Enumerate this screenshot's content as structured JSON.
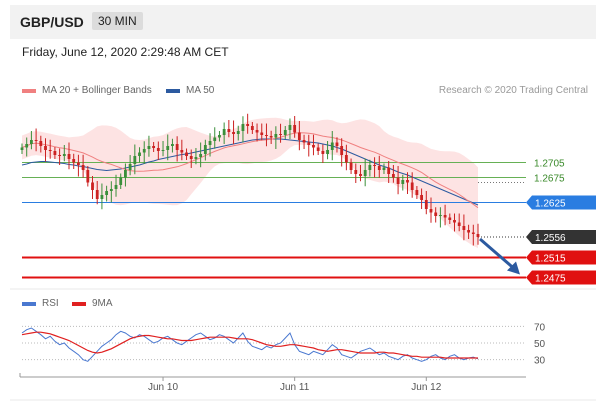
{
  "header": {
    "pair": "GBP/USD",
    "timeframe": "30 MIN"
  },
  "timestamp": "Friday, June 12, 2020 2:29:48 AM CET",
  "legend_main": [
    {
      "label": "MA 20 + Bollinger Bands",
      "color": "#f08080"
    },
    {
      "label": "MA 50",
      "color": "#2c5aa0"
    }
  ],
  "credit": "Research © 2020 Trading Central",
  "legend_rsi": [
    {
      "label": "RSI",
      "color": "#4a78d0"
    },
    {
      "label": "9MA",
      "color": "#e02020"
    }
  ],
  "colors": {
    "up": "#3a8f3a",
    "down": "#cc2222",
    "band": "#fde0e0",
    "ma50": "#2c5aa0",
    "ma20": "#f08080"
  },
  "chart_data": [
    {
      "type": "candlestick",
      "series_name": "GBP/USD 30 MIN",
      "ylim": [
        1.246,
        1.283
      ],
      "x_labels": [
        {
          "label": "Jun 10",
          "index": 30
        },
        {
          "label": "Jun 11",
          "index": 58
        },
        {
          "label": "Jun 12",
          "index": 86
        }
      ],
      "levels": [
        {
          "label": "1.2705",
          "value": 1.2705,
          "type": "resistance",
          "color": "#66b055",
          "text_color": "#3a8a2a"
        },
        {
          "label": "1.2675",
          "value": 1.2675,
          "type": "resistance",
          "color": "#66b055",
          "text_color": "#3a8a2a"
        },
        {
          "label": "1.2625",
          "value": 1.2625,
          "type": "pivot",
          "color": "#2a7de1",
          "text_color": "#ffffff"
        },
        {
          "label": "1.2556",
          "value": 1.2556,
          "type": "last",
          "color": "#333333",
          "text_color": "#ffffff"
        },
        {
          "label": "1.2515",
          "value": 1.2515,
          "type": "support",
          "color": "#e01010",
          "text_color": "#ffffff"
        },
        {
          "label": "1.2475",
          "value": 1.2475,
          "type": "support",
          "color": "#e01010",
          "text_color": "#ffffff"
        }
      ],
      "closes": [
        1.2735,
        1.2742,
        1.275,
        1.2748,
        1.2738,
        1.273,
        1.2728,
        1.272,
        1.2718,
        1.2722,
        1.2712,
        1.2705,
        1.27,
        1.269,
        1.2665,
        1.265,
        1.2632,
        1.264,
        1.2648,
        1.2652,
        1.266,
        1.2675,
        1.269,
        1.2702,
        1.2718,
        1.2725,
        1.2732,
        1.2738,
        1.2734,
        1.2728,
        1.273,
        1.2738,
        1.2742,
        1.273,
        1.2725,
        1.2718,
        1.2712,
        1.2716,
        1.2722,
        1.274,
        1.2748,
        1.2755,
        1.276,
        1.2772,
        1.2766,
        1.2762,
        1.2768,
        1.2782,
        1.2778,
        1.277,
        1.2765,
        1.276,
        1.2758,
        1.2755,
        1.2762,
        1.276,
        1.277,
        1.278,
        1.2765,
        1.275,
        1.2745,
        1.274,
        1.2735,
        1.2728,
        1.2722,
        1.273,
        1.2745,
        1.2738,
        1.272,
        1.2705,
        1.269,
        1.2682,
        1.2678,
        1.269,
        1.27,
        1.2698,
        1.269,
        1.2695,
        1.2682,
        1.2675,
        1.2662,
        1.267,
        1.2665,
        1.265,
        1.264,
        1.263,
        1.2612,
        1.2605,
        1.2598,
        1.26,
        1.2595,
        1.259,
        1.2585,
        1.2578,
        1.257,
        1.2565,
        1.2562,
        1.2556
      ],
      "ma50": [
        1.27,
        1.2702,
        1.2705,
        1.2706,
        1.2707,
        1.2707,
        1.2706,
        1.2705,
        1.2704,
        1.2703,
        1.2701,
        1.27,
        1.2698,
        1.2697,
        1.2695,
        1.2693,
        1.2691,
        1.269,
        1.2689,
        1.269,
        1.2691,
        1.2692,
        1.2694,
        1.2696,
        1.2698,
        1.27,
        1.2703,
        1.2706,
        1.2708,
        1.2711,
        1.2713,
        1.2715,
        1.2717,
        1.2719,
        1.2721,
        1.2722,
        1.2724,
        1.2726,
        1.2728,
        1.273,
        1.2732,
        1.2734,
        1.2736,
        1.2738,
        1.274,
        1.2742,
        1.2744,
        1.2746,
        1.2748,
        1.275,
        1.2751,
        1.2752,
        1.2752,
        1.2752,
        1.2752,
        1.2752,
        1.2751,
        1.275,
        1.2749,
        1.2748,
        1.2747,
        1.2746,
        1.2745,
        1.2744,
        1.2742,
        1.274,
        1.2738,
        1.2735,
        1.2732,
        1.2728,
        1.2724,
        1.272,
        1.2716,
        1.2712,
        1.2708,
        1.2704,
        1.27,
        1.2697,
        1.2694,
        1.269,
        1.2686,
        1.2683,
        1.268,
        1.2676,
        1.2672,
        1.2668,
        1.2664,
        1.266,
        1.2656,
        1.2652,
        1.2648,
        1.2644,
        1.264,
        1.2636,
        1.2632,
        1.2628,
        1.2624,
        1.262
      ]
    },
    {
      "type": "line",
      "title": "RSI",
      "ylim": [
        20,
        80
      ],
      "ticks": [
        70,
        50,
        30
      ],
      "series": [
        {
          "name": "RSI",
          "values": [
            62,
            66,
            68,
            64,
            60,
            55,
            58,
            52,
            48,
            50,
            44,
            40,
            36,
            30,
            28,
            34,
            40,
            46,
            50,
            54,
            60,
            64,
            62,
            58,
            56,
            60,
            58,
            54,
            50,
            52,
            56,
            58,
            54,
            50,
            48,
            52,
            56,
            60,
            62,
            58,
            54,
            56,
            60,
            58,
            54,
            50,
            56,
            62,
            52,
            46,
            44,
            42,
            46,
            44,
            48,
            50,
            56,
            62,
            48,
            40,
            38,
            36,
            40,
            38,
            36,
            42,
            48,
            44,
            36,
            34,
            32,
            36,
            40,
            42,
            44,
            40,
            36,
            38,
            34,
            32,
            30,
            34,
            36,
            32,
            30,
            28,
            30,
            34,
            36,
            32,
            30,
            34,
            36,
            32,
            30,
            32,
            33,
            31
          ]
        },
        {
          "name": "9MA",
          "values": [
            60,
            61,
            62,
            63,
            63,
            62,
            61,
            59,
            57,
            55,
            53,
            50,
            47,
            44,
            41,
            39,
            38,
            39,
            41,
            43,
            46,
            49,
            52,
            55,
            57,
            58,
            59,
            59,
            58,
            57,
            56,
            55,
            55,
            54,
            53,
            53,
            53,
            54,
            55,
            56,
            57,
            57,
            57,
            57,
            57,
            56,
            55,
            55,
            55,
            54,
            52,
            50,
            48,
            47,
            46,
            46,
            47,
            48,
            48,
            47,
            46,
            45,
            44,
            42,
            41,
            40,
            41,
            42,
            42,
            41,
            40,
            39,
            38,
            38,
            38,
            38,
            39,
            39,
            38,
            38,
            37,
            36,
            35,
            34,
            34,
            33,
            33,
            33,
            33,
            33,
            32,
            32,
            32,
            32,
            32,
            32,
            32,
            32
          ]
        }
      ]
    }
  ]
}
